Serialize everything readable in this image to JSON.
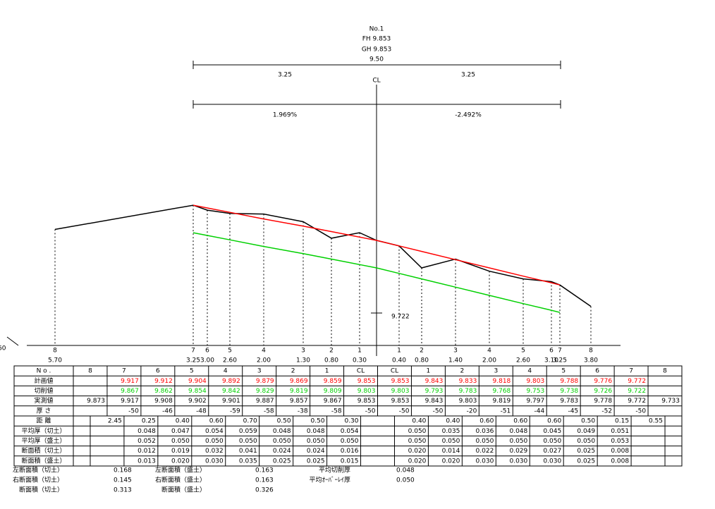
{
  "header": {
    "no": "No.1",
    "fh": "FH 9.853",
    "gh": "GH 9.853",
    "total_width": "9.50",
    "left_width": "3.25",
    "right_width": "3.25",
    "cl": "CL",
    "left_slope": "1.969%",
    "right_slope": "-2.492%",
    "marker_label": "9.722",
    "edge_label": "60"
  },
  "left_points": [
    {
      "no": "8",
      "offset": "5.70"
    },
    {
      "no": "7",
      "offset": "3.25"
    },
    {
      "no": "6",
      "offset": "3.00"
    },
    {
      "no": "5",
      "offset": "2.60"
    },
    {
      "no": "4",
      "offset": "2.00"
    },
    {
      "no": "3",
      "offset": "1.30"
    },
    {
      "no": "2",
      "offset": "0.80"
    },
    {
      "no": "1",
      "offset": "0.30"
    }
  ],
  "right_points": [
    {
      "no": "1",
      "offset": "0.40"
    },
    {
      "no": "2",
      "offset": "0.80"
    },
    {
      "no": "3",
      "offset": "1.40"
    },
    {
      "no": "4",
      "offset": "2.00"
    },
    {
      "no": "5",
      "offset": "2.60"
    },
    {
      "no": "6",
      "offset": "3.10"
    },
    {
      "no": "7",
      "offset": "3.25"
    },
    {
      "no": "8",
      "offset": "3.80"
    }
  ],
  "table": {
    "header": {
      "label": "N o .",
      "cells": [
        "8",
        "7",
        "6",
        "5",
        "4",
        "3",
        "2",
        "1",
        "CL",
        "CL",
        "1",
        "2",
        "3",
        "4",
        "5",
        "6",
        "7",
        "8"
      ]
    },
    "rows": [
      {
        "label": "計画値",
        "color": "#ff0000",
        "cells": [
          null,
          "9.917",
          "9.912",
          "9.904",
          "9.892",
          "9.879",
          "9.869",
          "9.859",
          "9.853",
          "9.853",
          "9.843",
          "9.833",
          "9.818",
          "9.803",
          "9.788",
          "9.776",
          "9.772",
          null
        ]
      },
      {
        "label": "切削値",
        "color": "#00d000",
        "cells": [
          null,
          "9.867",
          "9.862",
          "9.854",
          "9.842",
          "9.829",
          "9.819",
          "9.809",
          "9.803",
          "9.803",
          "9.793",
          "9.783",
          "9.768",
          "9.753",
          "9.738",
          "9.726",
          "9.722",
          null
        ]
      },
      {
        "label": "実測値",
        "color": "#000000",
        "cells": [
          "9.873",
          "9.917",
          "9.908",
          "9.902",
          "9.901",
          "9.887",
          "9.857",
          "9.867",
          "9.853",
          "9.853",
          "9.843",
          "9.803",
          "9.819",
          "9.797",
          "9.783",
          "9.778",
          "9.772",
          "9.733"
        ]
      },
      {
        "label": "厚 さ",
        "color": "#000000",
        "cells": [
          null,
          "-50",
          "-46",
          "-48",
          "-59",
          "-58",
          "-38",
          "-58",
          "-50",
          "-50",
          "-50",
          "-20",
          "-51",
          "-44",
          "-45",
          "-52",
          "-50",
          null
        ]
      }
    ],
    "interval_rows": [
      {
        "label": "距 離",
        "cells": [
          "2.45",
          "0.25",
          "0.40",
          "0.60",
          "0.70",
          "0.50",
          "0.50",
          "0.30",
          null,
          "0.40",
          "0.40",
          "0.60",
          "0.60",
          "0.60",
          "0.50",
          "0.15",
          "0.55"
        ]
      },
      {
        "label": "平均厚（切土）",
        "cells": [
          null,
          "0.048",
          "0.047",
          "0.054",
          "0.059",
          "0.048",
          "0.048",
          "0.054",
          null,
          "0.050",
          "0.035",
          "0.036",
          "0.048",
          "0.045",
          "0.049",
          "0.051",
          null
        ]
      },
      {
        "label": "平均厚（盛土）",
        "cells": [
          null,
          "0.052",
          "0.050",
          "0.050",
          "0.050",
          "0.050",
          "0.050",
          "0.050",
          null,
          "0.050",
          "0.050",
          "0.050",
          "0.050",
          "0.050",
          "0.050",
          "0.053",
          null
        ]
      },
      {
        "label": "断面積（切土）",
        "cells": [
          null,
          "0.012",
          "0.019",
          "0.032",
          "0.041",
          "0.024",
          "0.024",
          "0.016",
          null,
          "0.020",
          "0.014",
          "0.022",
          "0.029",
          "0.027",
          "0.025",
          "0.008",
          null
        ]
      },
      {
        "label": "断面積（盛土）",
        "cells": [
          null,
          "0.013",
          "0.020",
          "0.030",
          "0.035",
          "0.025",
          "0.025",
          "0.015",
          null,
          "0.020",
          "0.020",
          "0.030",
          "0.030",
          "0.030",
          "0.025",
          "0.008",
          null
        ]
      }
    ]
  },
  "summary": [
    [
      {
        "label": "左断面積（切土）",
        "value": "0.168"
      },
      {
        "label": "左断面積（盛土）",
        "value": "0.163"
      },
      {
        "label": "平均切削厚",
        "value": "0.048"
      }
    ],
    [
      {
        "label": "右断面積（切土）",
        "value": "0.145"
      },
      {
        "label": "右断面積（盛土）",
        "value": "0.163"
      },
      {
        "label": "平均ｵｰﾊﾞｰﾚｲ厚",
        "value": "0.050"
      }
    ],
    [
      {
        "label": "断面積（切土）",
        "value": "0.313"
      },
      {
        "label": "断面積（盛土）",
        "value": "0.326"
      }
    ]
  ]
}
